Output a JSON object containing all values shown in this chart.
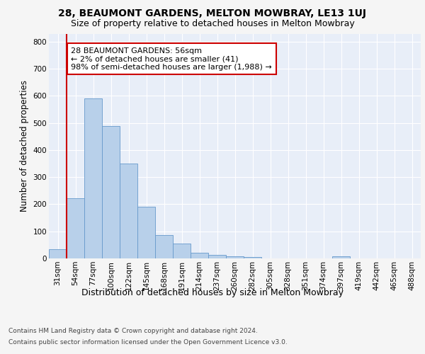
{
  "title1": "28, BEAUMONT GARDENS, MELTON MOWBRAY, LE13 1UJ",
  "title2": "Size of property relative to detached houses in Melton Mowbray",
  "xlabel": "Distribution of detached houses by size in Melton Mowbray",
  "ylabel": "Number of detached properties",
  "bar_labels": [
    "31sqm",
    "54sqm",
    "77sqm",
    "100sqm",
    "122sqm",
    "145sqm",
    "168sqm",
    "191sqm",
    "214sqm",
    "237sqm",
    "260sqm",
    "282sqm",
    "305sqm",
    "328sqm",
    "351sqm",
    "374sqm",
    "397sqm",
    "419sqm",
    "442sqm",
    "465sqm",
    "488sqm"
  ],
  "bar_values": [
    35,
    222,
    590,
    490,
    350,
    190,
    85,
    55,
    22,
    14,
    8,
    5,
    0,
    0,
    0,
    0,
    7,
    0,
    0,
    0,
    0
  ],
  "bar_color": "#b8d0ea",
  "bar_edge_color": "#6699cc",
  "property_line_color": "#cc0000",
  "ylim": [
    0,
    830
  ],
  "yticks": [
    0,
    100,
    200,
    300,
    400,
    500,
    600,
    700,
    800
  ],
  "annotation_text": "28 BEAUMONT GARDENS: 56sqm\n← 2% of detached houses are smaller (41)\n98% of semi-detached houses are larger (1,988) →",
  "annotation_box_color": "#ffffff",
  "annotation_box_edge_color": "#cc0000",
  "footer1": "Contains HM Land Registry data © Crown copyright and database right 2024.",
  "footer2": "Contains public sector information licensed under the Open Government Licence v3.0.",
  "fig_background": "#f5f5f5",
  "plot_background": "#e8eef8",
  "grid_color": "#ffffff",
  "title1_fontsize": 10,
  "title2_fontsize": 9,
  "xlabel_fontsize": 9,
  "ylabel_fontsize": 8.5,
  "tick_fontsize": 7.5,
  "annotation_fontsize": 8,
  "footer_fontsize": 6.5
}
